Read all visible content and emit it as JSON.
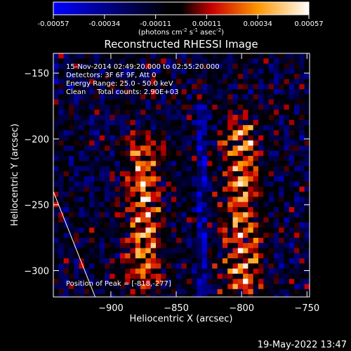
{
  "colorbar": {
    "ticks": [
      "-0.00057",
      "-0.00034",
      "-0.00011",
      "0.00011",
      "0.00034",
      "0.00057"
    ],
    "unit_parts": [
      "(photons cm",
      "-2",
      " s",
      "-1",
      " asec",
      "-2",
      ")"
    ]
  },
  "chart_data": {
    "type": "heatmap",
    "title": "Reconstructed RHESSI Image",
    "xlabel": "Heliocentric X (arcsec)",
    "ylabel": "Heliocentric Y (arcsec)",
    "xlim": [
      -944,
      -748
    ],
    "ylim": [
      -320,
      -135
    ],
    "xticks": [
      -900,
      -850,
      -800,
      -750
    ],
    "xtick_labels": [
      "−900",
      "−850",
      "−800",
      "−750"
    ],
    "yticks": [
      -150,
      -200,
      -250,
      -300
    ],
    "ytick_labels": [
      "−150",
      "−200",
      "−250",
      "−300"
    ],
    "colorbar_range": [
      -0.00057,
      0.00057
    ],
    "colormap": "blue-black-red-yellow-white",
    "colors": {
      "neg_end": "#0000ff",
      "mid": "#000000",
      "pos_low": "#c80000",
      "pos_mid": "#ff9600",
      "pos_end": "#ffffff"
    },
    "bright_sources": [
      {
        "x": -875,
        "y_from": -210,
        "y_to": -300,
        "note": "left column"
      },
      {
        "x": -800,
        "y_from": -195,
        "y_to": -310,
        "note": "right column"
      }
    ],
    "peak": [
      -818,
      -277
    ],
    "limb_line": {
      "from": [
        -944,
        -240
      ],
      "to": [
        -912,
        -320
      ]
    },
    "annotations": [
      "15-Nov-2014 02:49:20.000 to 02:55:20.000",
      "Detectors: 3F 6F 9F, Att 0",
      "Energy Range: 25.0 - 50.0 keV",
      "Clean     Total counts: 2.90E+03"
    ],
    "peak_label": "Position of Peak = [-818,-277]"
  },
  "footer": {
    "timestamp": "19-May-2022 13:47"
  }
}
